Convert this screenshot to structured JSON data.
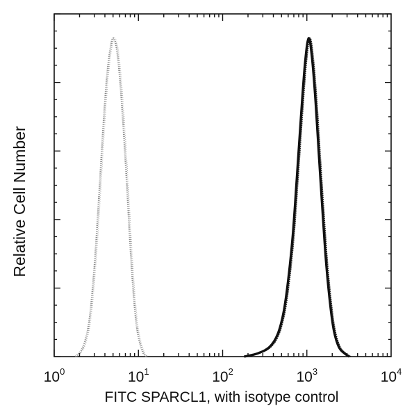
{
  "chart_data": {
    "type": "line",
    "title": "",
    "xlabel": "FITC  SPARCL1,  with isotype control",
    "ylabel": "Relative Cell Number",
    "x_scale": "log",
    "xlim": [
      1,
      10000
    ],
    "ylim": [
      0,
      100
    ],
    "grid": false,
    "legend": "none",
    "x_ticks": [
      {
        "base": "10",
        "exp": "0",
        "value": 1
      },
      {
        "base": "10",
        "exp": "1",
        "value": 10
      },
      {
        "base": "10",
        "exp": "2",
        "value": 100
      },
      {
        "base": "10",
        "exp": "3",
        "value": 1000
      },
      {
        "base": "10",
        "exp": "4",
        "value": 10000
      }
    ],
    "series": [
      {
        "style": "dotted-light",
        "color": "#8a8a8a",
        "x": [
          1.8,
          2.2,
          2.6,
          3.0,
          3.4,
          3.8,
          4.2,
          4.6,
          5.0,
          5.5,
          6.0,
          6.6,
          7.3,
          8.0,
          8.8,
          9.6,
          10.5,
          11.5,
          12.5
        ],
        "y": [
          0,
          3,
          11,
          28,
          50,
          71,
          87,
          96,
          100,
          97,
          88,
          73,
          54,
          35,
          19,
          9,
          4,
          1,
          0
        ]
      },
      {
        "style": "solid-dark",
        "color": "#111111",
        "x": [
          180,
          260,
          360,
          450,
          530,
          600,
          680,
          760,
          850,
          950,
          1050,
          1150,
          1270,
          1400,
          1550,
          1700,
          1900,
          2100,
          2400,
          2800,
          3200
        ],
        "y": [
          0,
          1,
          3,
          7,
          14,
          24,
          38,
          56,
          75,
          92,
          100,
          94,
          80,
          62,
          44,
          29,
          16,
          8,
          3,
          1,
          0
        ]
      }
    ]
  }
}
